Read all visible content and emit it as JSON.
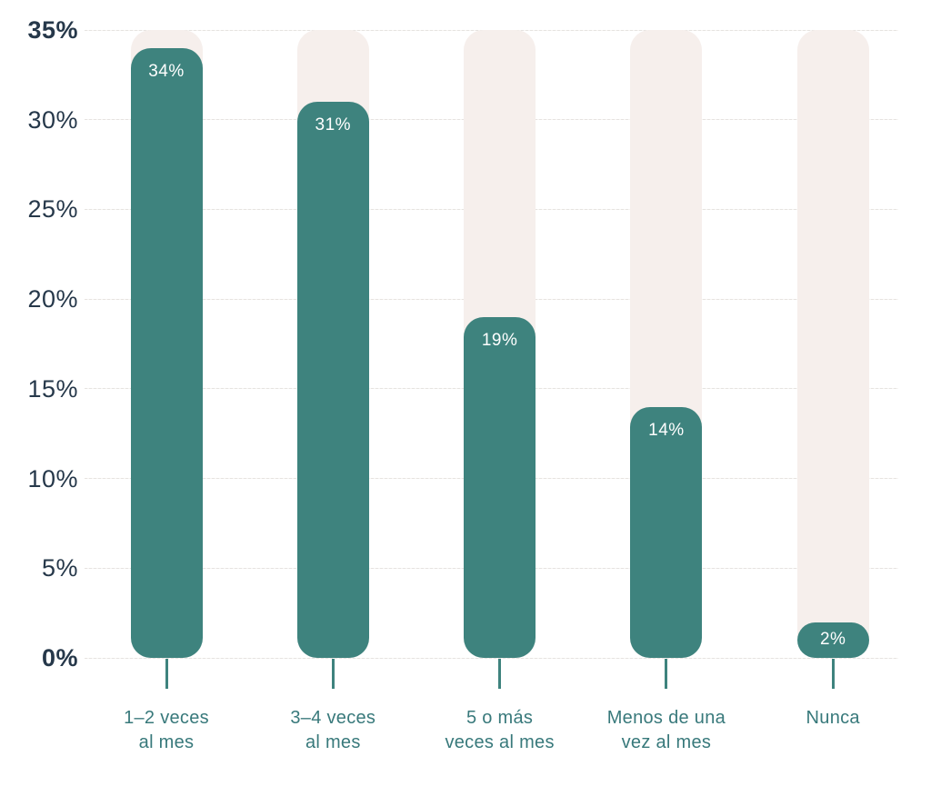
{
  "chart_data": {
    "type": "bar",
    "title": "",
    "xlabel": "",
    "ylabel": "",
    "categories": [
      "1–2 veces\nal mes",
      "3–4 veces\nal mes",
      "5 o más\nveces al mes",
      "Menos de una\nvez al mes",
      "Nunca"
    ],
    "values": [
      34,
      31,
      19,
      14,
      2
    ],
    "value_labels": [
      "34%",
      "31%",
      "19%",
      "14%",
      "2%"
    ],
    "ylim": [
      0,
      35
    ],
    "y_ticks": [
      {
        "value": 0,
        "label": "0%",
        "bold": true
      },
      {
        "value": 5,
        "label": "5%",
        "bold": false
      },
      {
        "value": 10,
        "label": "10%",
        "bold": false
      },
      {
        "value": 15,
        "label": "15%",
        "bold": false
      },
      {
        "value": 20,
        "label": "20%",
        "bold": false
      },
      {
        "value": 25,
        "label": "25%",
        "bold": false
      },
      {
        "value": 30,
        "label": "30%",
        "bold": false
      },
      {
        "value": 35,
        "label": "35%",
        "bold": true
      }
    ],
    "grid": true,
    "legend_position": "none",
    "colors": {
      "bar": "#3E837E",
      "track": "#F6EFEC",
      "axis_text": "#26384A",
      "category_text": "#38797B",
      "tick_line": "#3E837E",
      "gridline": "#E6E3E0",
      "value_text": "#FFFFFF",
      "background": "#FFFFFF"
    }
  }
}
